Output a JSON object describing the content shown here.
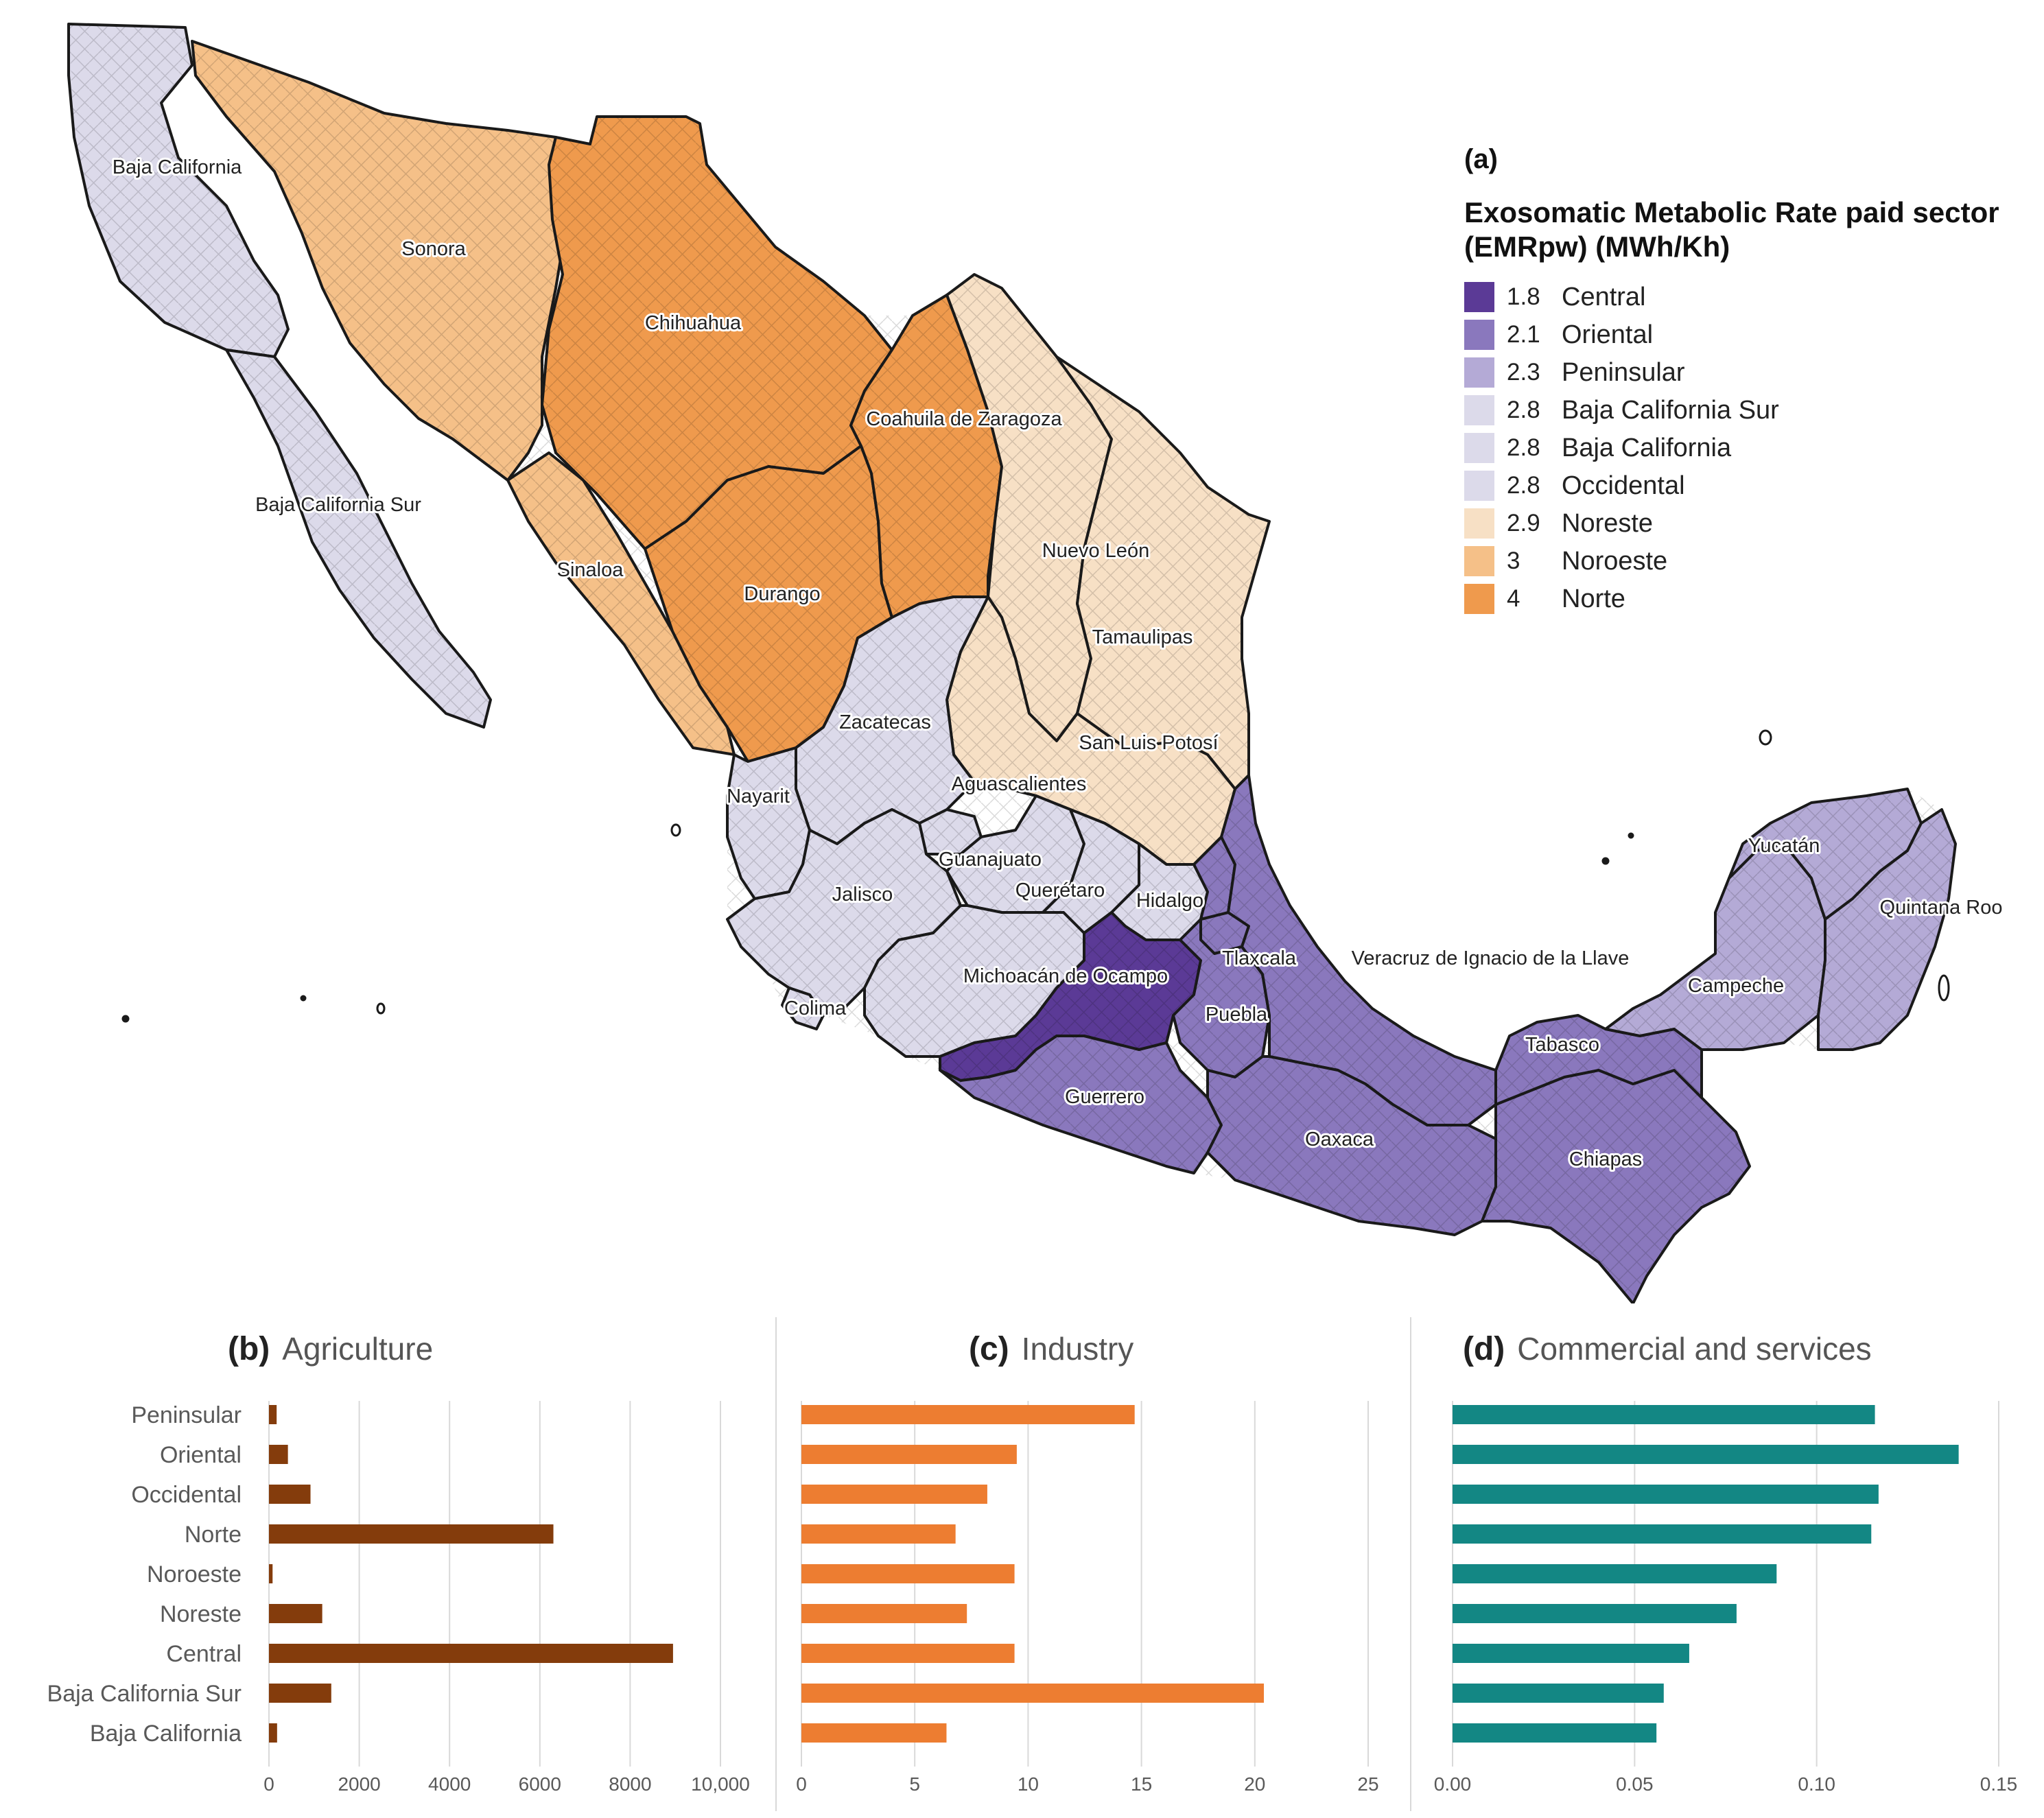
{
  "map": {
    "panel_label": "(a)",
    "legend_title": "Exosomatic Metabolic Rate paid sector (EMRpw) (MWh/Kh)",
    "legend": [
      {
        "value": "1.8",
        "name": "Central",
        "color": "#5b3a96"
      },
      {
        "value": "2.1",
        "name": "Oriental",
        "color": "#8a78bd"
      },
      {
        "value": "2.3",
        "name": "Peninsular",
        "color": "#b4aad6"
      },
      {
        "value": "2.8",
        "name": "Baja California Sur",
        "color": "#dcdaea"
      },
      {
        "value": "2.8",
        "name": "Baja California",
        "color": "#dcdaea"
      },
      {
        "value": "2.8",
        "name": "Occidental",
        "color": "#dcdaea"
      },
      {
        "value": "2.9",
        "name": "Noreste",
        "color": "#f7e0c5"
      },
      {
        "value": "3",
        "name": "Noroeste",
        "color": "#f5c088"
      },
      {
        "value": "4",
        "name": "Norte",
        "color": "#ef9a4d"
      }
    ],
    "state_labels": [
      "Baja California",
      "Sonora",
      "Chihuahua",
      "Coahuila de Zaragoza",
      "Baja California Sur",
      "Sinaloa",
      "Durango",
      "Nuevo León",
      "Tamaulipas",
      "Zacatecas",
      "San Luis Potosí",
      "Nayarit",
      "Aguascalientes",
      "Guanajuato",
      "Jalisco",
      "Querétaro",
      "Hidalgo",
      "Yucatán",
      "Quintana Roo",
      "Michoacán de Ocampo",
      "Tlaxcala",
      "Veracruz de Ignacio de la Llave",
      "Campeche",
      "Colima",
      "Puebla",
      "Tabasco",
      "Guerrero",
      "Oaxaca",
      "Chiapas"
    ]
  },
  "chart_data": [
    {
      "type": "bar",
      "orientation": "horizontal",
      "panel": "(b)",
      "title": "Agriculture",
      "categories": [
        "Peninsular",
        "Oriental",
        "Occidental",
        "Norte",
        "Noroeste",
        "Noreste",
        "Central",
        "Baja California Sur",
        "Baja California"
      ],
      "values": [
        170,
        420,
        920,
        6300,
        80,
        1180,
        8950,
        1380,
        180
      ],
      "xlim": [
        0,
        10000
      ],
      "ticks": [
        "0",
        "2000",
        "4000",
        "6000",
        "8000",
        "10,000"
      ],
      "color": "#843c0c",
      "grid": true
    },
    {
      "type": "bar",
      "orientation": "horizontal",
      "panel": "(c)",
      "title": "Industry",
      "categories": [
        "Peninsular",
        "Oriental",
        "Occidental",
        "Norte",
        "Noroeste",
        "Noreste",
        "Central",
        "Baja California Sur",
        "Baja California"
      ],
      "values": [
        14.7,
        9.5,
        8.2,
        6.8,
        9.4,
        7.3,
        9.4,
        20.4,
        6.4
      ],
      "xlim": [
        0,
        25
      ],
      "ticks": [
        "0",
        "5",
        "10",
        "15",
        "20",
        "25"
      ],
      "color": "#ed7d31",
      "grid": true
    },
    {
      "type": "bar",
      "orientation": "horizontal",
      "panel": "(d)",
      "title": "Commercial and services",
      "categories": [
        "Peninsular",
        "Oriental",
        "Occidental",
        "Norte",
        "Noroeste",
        "Noreste",
        "Central",
        "Baja California Sur",
        "Baja California"
      ],
      "values": [
        0.116,
        0.139,
        0.117,
        0.115,
        0.089,
        0.078,
        0.065,
        0.058,
        0.056
      ],
      "xlim": [
        0,
        0.15
      ],
      "ticks": [
        "0.00",
        "0.05",
        "0.10",
        "0.15"
      ],
      "color": "#138784",
      "grid": true
    }
  ]
}
